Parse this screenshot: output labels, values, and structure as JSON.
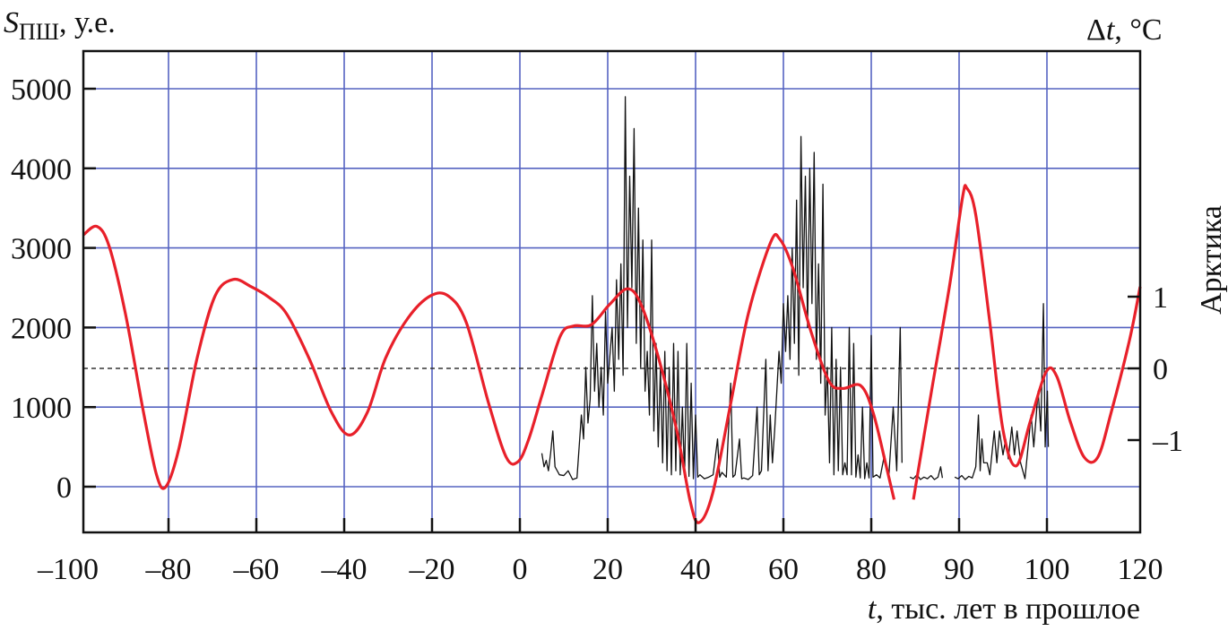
{
  "chart_data": {
    "type": "line",
    "left_axis": {
      "label_symbol": "S",
      "label_sub": "ПШ",
      "label_unit": ", у.е.",
      "ticks": [
        0,
        1000,
        2000,
        3000,
        4000,
        5000
      ],
      "ylim": [
        -600,
        5450
      ]
    },
    "right_axis": {
      "label_symbol": "Δ",
      "label_var": "t",
      "label_unit": ", °C",
      "side_label": "Арктика",
      "ticks": [
        1,
        0,
        -1
      ],
      "tick_labels": [
        "1",
        "0",
        "–1"
      ]
    },
    "x_axis": {
      "label_var": "t",
      "label_text": ", тыс. лет в прошлое",
      "ticks": [
        -100,
        -80,
        -60,
        -40,
        -20,
        0,
        20,
        40,
        60,
        80,
        90,
        100,
        120
      ],
      "tick_labels": [
        "–100",
        "–80",
        "–60",
        "–40",
        "–20",
        "0",
        "20",
        "40",
        "60",
        "80",
        "90",
        "100",
        "120"
      ]
    },
    "grid": true,
    "reference_line": {
      "axis": "right",
      "value": 0,
      "style": "dashed"
    },
    "series": [
      {
        "name": "Арктика Δt",
        "axis": "right",
        "color": "#e8202a",
        "segments": [
          [
            [
              -99.4,
              1.86
            ],
            [
              -96.3,
              1.98
            ],
            [
              -93.5,
              1.7
            ],
            [
              -89.8,
              0.76
            ],
            [
              -85.7,
              -0.61
            ],
            [
              -82.7,
              -1.49
            ],
            [
              -80.6,
              -1.65
            ],
            [
              -77.6,
              -1.11
            ],
            [
              -73.5,
              0.14
            ],
            [
              -69.4,
              1.01
            ],
            [
              -65.3,
              1.24
            ],
            [
              -61.2,
              1.14
            ],
            [
              -57.1,
              0.99
            ],
            [
              -53.1,
              0.76
            ],
            [
              -48.0,
              0.14
            ],
            [
              -42.9,
              -0.61
            ],
            [
              -38.8,
              -0.93
            ],
            [
              -34.7,
              -0.61
            ],
            [
              -30.6,
              0.14
            ],
            [
              -25.5,
              0.7
            ],
            [
              -20.4,
              1.01
            ],
            [
              -16.3,
              1.01
            ],
            [
              -12.2,
              0.64
            ],
            [
              -7.1,
              -0.49
            ],
            [
              -3.1,
              -1.24
            ],
            [
              -0.4,
              -1.3
            ],
            [
              2.0,
              -0.99
            ],
            [
              5.1,
              -0.36
            ],
            [
              9.2,
              0.45
            ],
            [
              12.2,
              0.59
            ],
            [
              16.3,
              0.61
            ],
            [
              20.4,
              0.89
            ],
            [
              24.5,
              1.11
            ],
            [
              27.6,
              0.89
            ],
            [
              31.6,
              0.14
            ],
            [
              35.7,
              -0.86
            ],
            [
              38.8,
              -1.86
            ],
            [
              40.8,
              -2.15
            ],
            [
              43.9,
              -1.74
            ],
            [
              48.0,
              -0.49
            ],
            [
              52.0,
              0.76
            ],
            [
              57.1,
              1.76
            ],
            [
              59.2,
              1.8
            ],
            [
              62.2,
              1.39
            ],
            [
              66.3,
              0.51
            ],
            [
              70.4,
              -0.18
            ],
            [
              73.5,
              -0.28
            ],
            [
              77.6,
              -0.24
            ],
            [
              80.2,
              -0.61
            ],
            [
              81.7,
              -1.36
            ],
            [
              82.6,
              -1.83
            ]
          ],
          [
            [
              84.8,
              -1.83
            ],
            [
              86.8,
              -0.36
            ],
            [
              88.9,
              1.14
            ],
            [
              90.4,
              2.39
            ],
            [
              90.9,
              2.51
            ],
            [
              91.9,
              2.14
            ],
            [
              93.5,
              0.64
            ],
            [
              95.0,
              -0.86
            ],
            [
              96.5,
              -1.36
            ],
            [
              98.1,
              -0.74
            ],
            [
              99.9,
              -0.05
            ],
            [
              102.1,
              -0.11
            ],
            [
              105.0,
              -0.74
            ],
            [
              108.0,
              -1.24
            ],
            [
              110.9,
              -1.24
            ],
            [
              113.8,
              -0.61
            ],
            [
              117.7,
              0.39
            ],
            [
              120,
              1.14
            ]
          ]
        ]
      },
      {
        "name": "S_ПШ",
        "axis": "left",
        "color": "#111111",
        "segments": [
          [
            [
              5,
              420
            ],
            [
              5.5,
              250
            ],
            [
              6,
              330
            ],
            [
              6.5,
              200
            ],
            [
              7,
              420
            ],
            [
              7.5,
              700
            ],
            [
              8,
              250
            ],
            [
              8.5,
              200
            ],
            [
              9,
              150
            ],
            [
              10,
              140
            ],
            [
              11,
              200
            ],
            [
              12,
              90
            ],
            [
              13,
              110
            ],
            [
              14,
              900
            ],
            [
              14.5,
              600
            ],
            [
              15,
              1500
            ],
            [
              15.5,
              800
            ],
            [
              16,
              1100
            ],
            [
              16.5,
              2400
            ],
            [
              17,
              1200
            ],
            [
              17.5,
              1800
            ],
            [
              18,
              1000
            ],
            [
              18.5,
              1500
            ],
            [
              19,
              900
            ],
            [
              19.5,
              2200
            ],
            [
              20,
              1300
            ],
            [
              21,
              2000
            ],
            [
              21.5,
              1200
            ],
            [
              22,
              2600
            ],
            [
              22.5,
              1600
            ],
            [
              23,
              2800
            ],
            [
              23.5,
              1400
            ],
            [
              24,
              4900
            ],
            [
              24.5,
              2000
            ],
            [
              25,
              3900
            ],
            [
              25.5,
              2500
            ],
            [
              26,
              4500
            ],
            [
              26.5,
              1800
            ],
            [
              27,
              3500
            ],
            [
              27.5,
              1500
            ],
            [
              28,
              3100
            ],
            [
              28.5,
              1200
            ],
            [
              29,
              1700
            ],
            [
              29.5,
              900
            ],
            [
              30,
              3100
            ],
            [
              30.5,
              700
            ],
            [
              31,
              1800
            ],
            [
              31.5,
              500
            ],
            [
              32,
              1500
            ],
            [
              32.5,
              300
            ],
            [
              33,
              1700
            ],
            [
              33.5,
              200
            ],
            [
              34,
              1500
            ],
            [
              34.5,
              150
            ],
            [
              35,
              1800
            ],
            [
              35.5,
              200
            ],
            [
              36,
              1700
            ],
            [
              36.5,
              150
            ],
            [
              37,
              1000
            ],
            [
              37.5,
              120
            ],
            [
              38,
              1800
            ],
            [
              38.5,
              130
            ],
            [
              39,
              1300
            ],
            [
              39.5,
              100
            ],
            [
              40,
              900
            ],
            [
              40.5,
              120
            ],
            [
              41,
              150
            ],
            [
              42,
              100
            ],
            [
              43,
              120
            ],
            [
              44,
              150
            ],
            [
              45,
              600
            ],
            [
              45.5,
              120
            ],
            [
              46,
              180
            ],
            [
              47,
              120
            ],
            [
              48,
              1300
            ],
            [
              48.5,
              120
            ],
            [
              49,
              150
            ],
            [
              50,
              600
            ],
            [
              50.5,
              100
            ],
            [
              51,
              110
            ],
            [
              52,
              90
            ],
            [
              53,
              140
            ],
            [
              54,
              1000
            ],
            [
              54.5,
              150
            ],
            [
              55,
              200
            ],
            [
              56,
              1600
            ],
            [
              56.5,
              200
            ],
            [
              57,
              900
            ],
            [
              57.5,
              300
            ],
            [
              58,
              700
            ],
            [
              58.5,
              1200
            ],
            [
              59,
              1700
            ],
            [
              59.5,
              1300
            ],
            [
              60,
              2300
            ],
            [
              60.5,
              1700
            ],
            [
              61,
              2400
            ],
            [
              61.5,
              1600
            ],
            [
              62,
              3000
            ],
            [
              62.5,
              1800
            ],
            [
              63,
              3600
            ],
            [
              63.5,
              1400
            ],
            [
              64,
              4400
            ],
            [
              64.5,
              2500
            ],
            [
              65,
              3900
            ],
            [
              65.5,
              2000
            ],
            [
              66,
              4000
            ],
            [
              66.5,
              2300
            ],
            [
              67,
              4200
            ],
            [
              67.5,
              1600
            ],
            [
              68,
              2800
            ],
            [
              68.5,
              1300
            ],
            [
              69,
              3800
            ],
            [
              69.5,
              900
            ],
            [
              70,
              1500
            ],
            [
              70.5,
              300
            ],
            [
              71,
              2000
            ],
            [
              71.5,
              150
            ],
            [
              72,
              1600
            ],
            [
              72.5,
              200
            ],
            [
              73,
              1500
            ],
            [
              73.5,
              150
            ],
            [
              74,
              300
            ],
            [
              74.5,
              150
            ],
            [
              75,
              2000
            ],
            [
              75.5,
              150
            ],
            [
              76,
              1800
            ],
            [
              76.5,
              120
            ],
            [
              77,
              400
            ],
            [
              77.5,
              110
            ],
            [
              78,
              1000
            ],
            [
              78.5,
              100
            ],
            [
              79,
              300
            ],
            [
              79.5,
              110
            ],
            [
              80,
              1900
            ],
            [
              80.2,
              120
            ],
            [
              80.6,
              150
            ],
            [
              81,
              110
            ],
            [
              81.5,
              400
            ],
            [
              82,
              130
            ],
            [
              82.5,
              1000
            ],
            [
              82.9,
              200
            ],
            [
              83.3,
              2000
            ],
            [
              83.5,
              300
            ]
          ],
          [
            [
              84.4,
              120
            ],
            [
              84.8,
              100
            ],
            [
              85.2,
              150
            ],
            [
              85.6,
              90
            ],
            [
              86,
              120
            ],
            [
              86.4,
              100
            ],
            [
              86.8,
              140
            ],
            [
              87.2,
              90
            ],
            [
              87.6,
              120
            ],
            [
              87.9,
              250
            ],
            [
              88.1,
              110
            ]
          ],
          [
            [
              89.5,
              120
            ],
            [
              89.9,
              100
            ],
            [
              90.3,
              140
            ],
            [
              90.7,
              90
            ],
            [
              91.1,
              130
            ],
            [
              91.5,
              110
            ],
            [
              91.9,
              250
            ],
            [
              92.2,
              900
            ],
            [
              92.4,
              200
            ],
            [
              92.6,
              600
            ],
            [
              92.8,
              300
            ],
            [
              93.2,
              300
            ],
            [
              93.5,
              150
            ],
            [
              94,
              700
            ],
            [
              94.3,
              300
            ],
            [
              94.6,
              700
            ],
            [
              95,
              400
            ],
            [
              95.3,
              600
            ],
            [
              95.6,
              350
            ],
            [
              96,
              750
            ],
            [
              96.3,
              400
            ],
            [
              96.6,
              700
            ],
            [
              97,
              300
            ],
            [
              97.5,
              100
            ],
            [
              98.2,
              900
            ],
            [
              98.5,
              500
            ],
            [
              99,
              1200
            ],
            [
              99.3,
              700
            ],
            [
              99.6,
              2300
            ],
            [
              99.8,
              500
            ],
            [
              100.1,
              1200
            ],
            [
              100.3,
              500
            ]
          ]
        ]
      }
    ]
  }
}
